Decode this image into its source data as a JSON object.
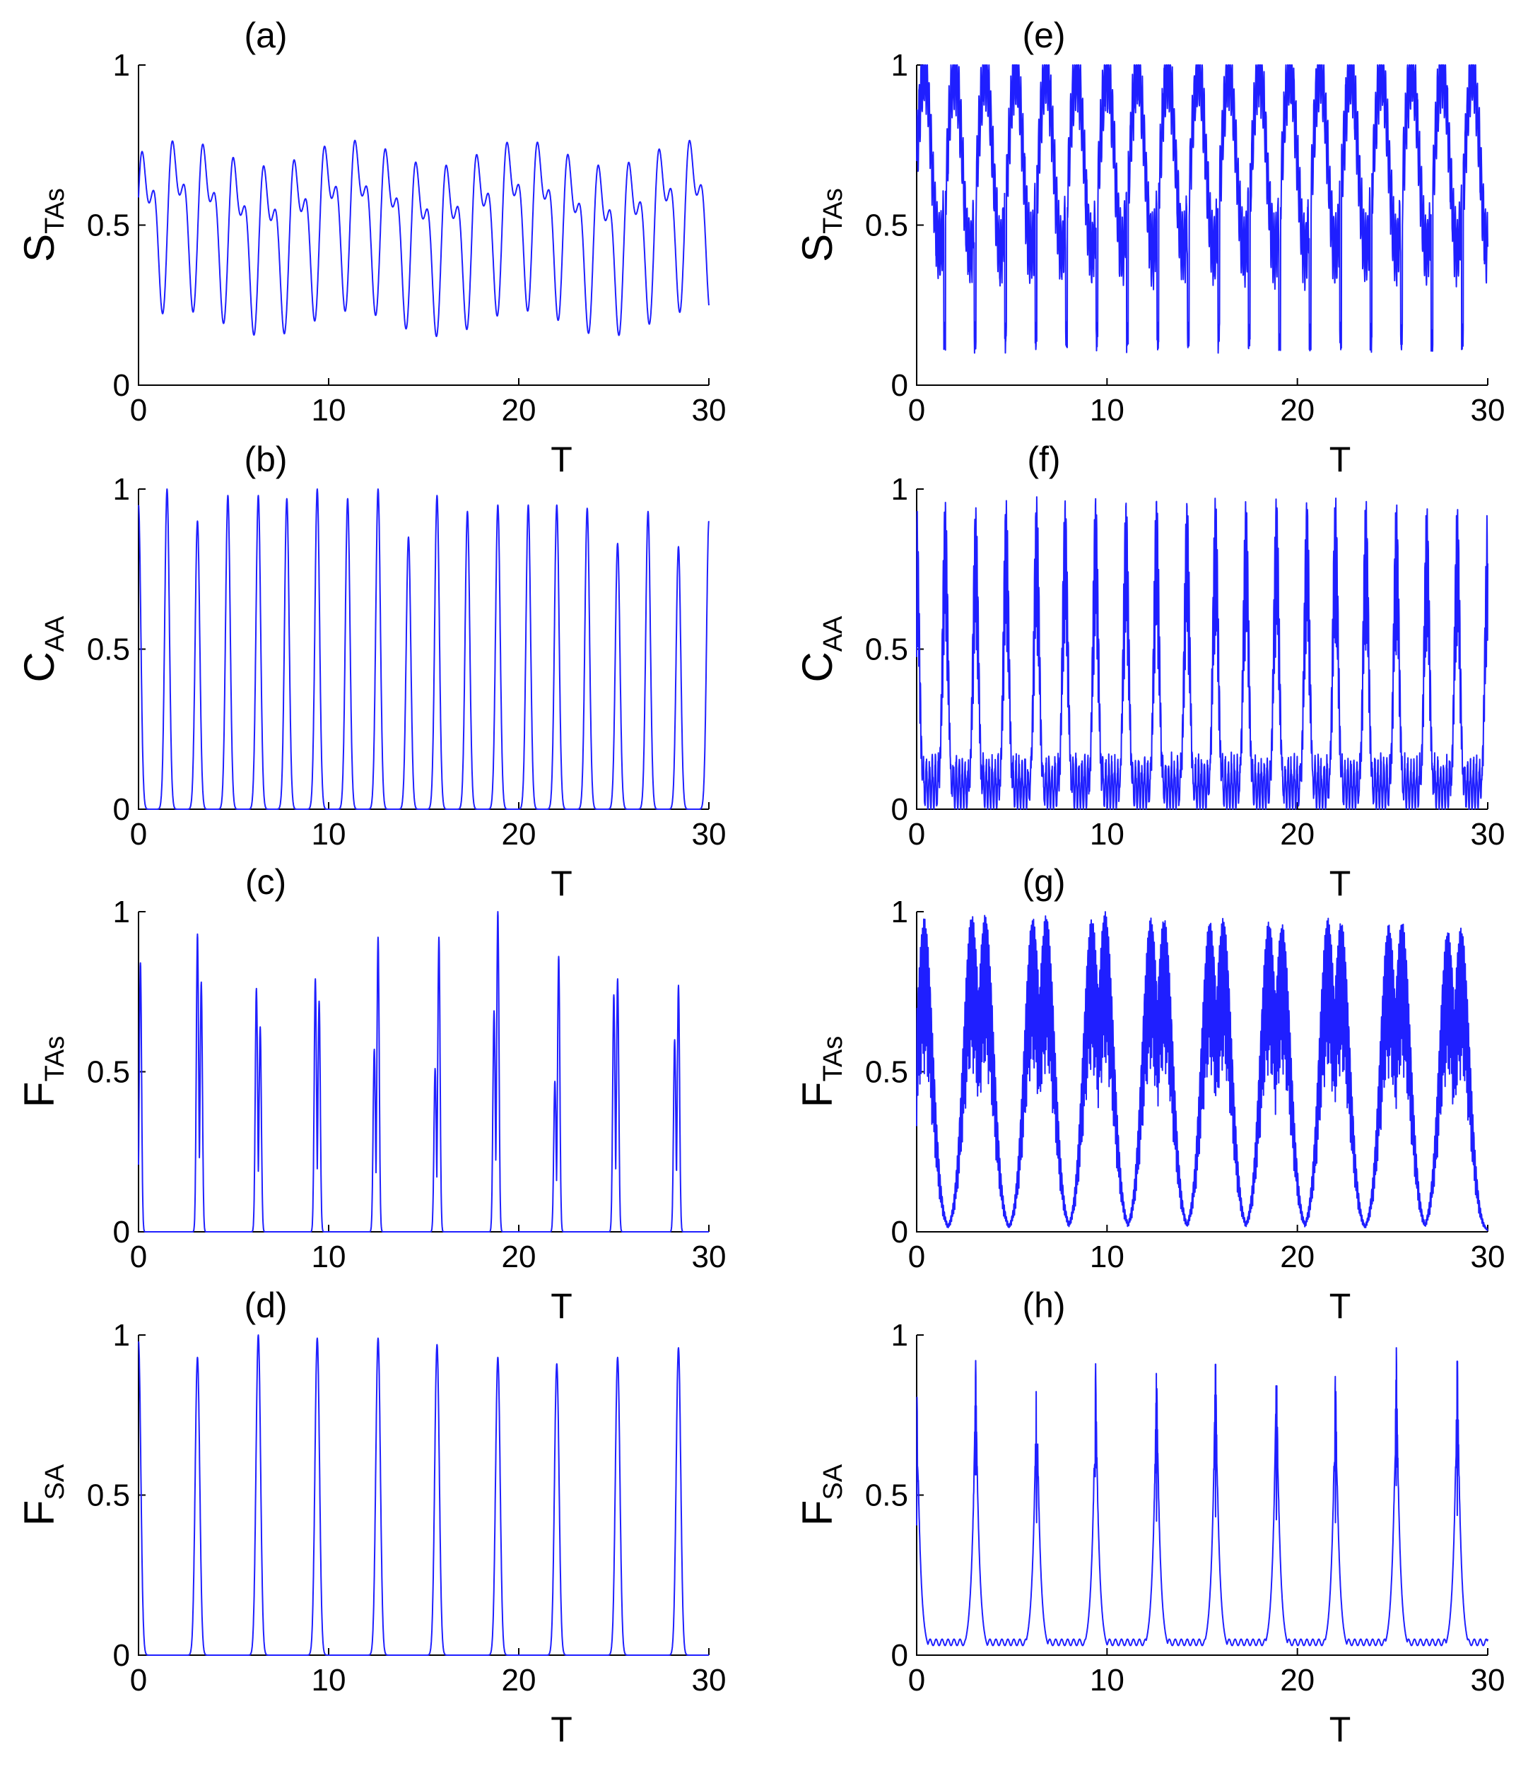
{
  "chart_data": [
    {
      "panel_label": "(a)",
      "type": "line",
      "ylabel_main": "S",
      "ylabel_sub": "TAs",
      "xlabel": "T",
      "xlim": [
        0,
        30
      ],
      "ylim": [
        0,
        1
      ],
      "xticks": [
        "0",
        "10",
        "20",
        "30"
      ],
      "yticks": [
        "0",
        "0.5",
        "1"
      ],
      "series": [
        {
          "color": "#1f1fff",
          "baseline": 0.5,
          "amp_big": 0.33,
          "amp_small": 0.24,
          "period": 1.6,
          "small_phase": 0.8,
          "noise": 0.0,
          "dense_amp": 0.0,
          "min_level": 0.15
        }
      ]
    },
    {
      "panel_label": "(b)",
      "type": "line",
      "ylabel_main": "C",
      "ylabel_sub": "AA",
      "xlabel": "T",
      "xlim": [
        0,
        30
      ],
      "ylim": [
        0,
        1
      ],
      "xticks": [
        "0",
        "10",
        "20",
        "30"
      ],
      "yticks": [
        "0",
        "0.5",
        "1"
      ],
      "series": [
        {
          "color": "#1f1fff",
          "peaks": [
            0,
            1.5,
            3.1,
            4.7,
            6.3,
            7.8,
            9.4,
            11.0,
            12.6,
            14.2,
            15.7,
            17.3,
            18.9,
            20.5,
            22.0,
            23.6,
            25.2,
            26.8,
            28.4,
            30.0
          ],
          "peak_heights": [
            0.95,
            1.0,
            0.9,
            0.98,
            0.98,
            0.97,
            1.0,
            0.97,
            1.0,
            0.85,
            0.98,
            0.93,
            0.95,
            0.95,
            0.95,
            0.94,
            0.83,
            0.93,
            0.82,
            0.9
          ],
          "width": 0.12,
          "floor": 0.0
        }
      ]
    },
    {
      "panel_label": "(c)",
      "type": "line",
      "ylabel_main": "F",
      "ylabel_sub": "TAs",
      "xlabel": "T",
      "xlim": [
        0,
        30
      ],
      "ylim": [
        0,
        1
      ],
      "xticks": [
        "0",
        "10",
        "20",
        "30"
      ],
      "yticks": [
        "0",
        "0.5",
        "1"
      ],
      "series": [
        {
          "color": "#1f1fff",
          "peaks": [
            0.1,
            3.1,
            3.3,
            6.2,
            6.4,
            9.3,
            9.5,
            12.4,
            12.6,
            15.6,
            15.8,
            18.7,
            18.9,
            21.9,
            22.1,
            25.0,
            25.2,
            28.2,
            28.4
          ],
          "peak_heights": [
            0.84,
            0.93,
            0.78,
            0.76,
            0.64,
            0.79,
            0.72,
            0.57,
            0.92,
            0.51,
            0.92,
            0.69,
            1.0,
            0.47,
            0.86,
            0.74,
            0.79,
            0.6,
            0.77
          ],
          "width": 0.06,
          "floor": 0.0
        }
      ]
    },
    {
      "panel_label": "(d)",
      "type": "line",
      "ylabel_main": "F",
      "ylabel_sub": "SA",
      "xlabel": "T",
      "xlim": [
        0,
        30
      ],
      "ylim": [
        0,
        1
      ],
      "xticks": [
        "0",
        "10",
        "20",
        "30"
      ],
      "yticks": [
        "0",
        "0.5",
        "1"
      ],
      "series": [
        {
          "color": "#1f1fff",
          "peaks": [
            0.0,
            3.1,
            6.3,
            9.4,
            12.6,
            15.7,
            18.9,
            22.0,
            25.2,
            28.4
          ],
          "peak_heights": [
            0.98,
            0.93,
            1.0,
            0.99,
            0.99,
            0.97,
            0.93,
            0.91,
            0.93,
            0.96
          ],
          "width": 0.12,
          "floor": 0.0
        }
      ]
    },
    {
      "panel_label": "(e)",
      "type": "line",
      "ylabel_main": "S",
      "ylabel_sub": "TAs",
      "xlabel": "T",
      "xlim": [
        0,
        30
      ],
      "ylim": [
        0,
        1
      ],
      "xticks": [
        "0",
        "10",
        "20",
        "30"
      ],
      "yticks": [
        "0",
        "0.5",
        "1"
      ],
      "series": [
        {
          "color": "#1f1fff",
          "baseline": 0.7,
          "amp_big": 0.28,
          "amp_small": 0.0,
          "period": 1.6,
          "small_phase": 0.0,
          "noise": 0.0,
          "dense_amp": 0.13,
          "min_level": 0.1
        }
      ]
    },
    {
      "panel_label": "(f)",
      "type": "line",
      "ylabel_main": "C",
      "ylabel_sub": "AA",
      "xlabel": "T",
      "xlim": [
        0,
        30
      ],
      "ylim": [
        0,
        1
      ],
      "xticks": [
        "0",
        "10",
        "20",
        "30"
      ],
      "yticks": [
        "0",
        "0.5",
        "1"
      ],
      "series": [
        {
          "color": "#1f1fff",
          "peaks": [
            0,
            1.5,
            3.1,
            4.7,
            6.3,
            7.8,
            9.4,
            11.0,
            12.6,
            14.2,
            15.7,
            17.3,
            18.9,
            20.5,
            22.0,
            23.6,
            25.2,
            26.8,
            28.4,
            30.0
          ],
          "peak_heights": [
            0.95,
            0.97,
            0.95,
            0.97,
            0.98,
            0.97,
            0.98,
            0.97,
            0.98,
            0.97,
            0.98,
            0.97,
            0.98,
            0.97,
            0.98,
            0.97,
            0.96,
            0.95,
            0.95,
            0.95
          ],
          "width": 0.15,
          "floor": 0.18,
          "dense": true
        }
      ]
    },
    {
      "panel_label": "(g)",
      "type": "line",
      "ylabel_main": "F",
      "ylabel_sub": "TAs",
      "xlabel": "T",
      "xlim": [
        0,
        30
      ],
      "ylim": [
        0,
        1
      ],
      "xticks": [
        "0",
        "10",
        "20",
        "30"
      ],
      "yticks": [
        "0",
        "0.5",
        "1"
      ],
      "series": [
        {
          "color": "#1f1fff",
          "peaks": [
            0.4,
            2.9,
            3.6,
            6.1,
            6.8,
            9.2,
            9.9,
            12.3,
            13.0,
            15.4,
            16.1,
            18.5,
            19.2,
            21.6,
            22.3,
            24.8,
            25.5,
            27.9,
            28.6
          ],
          "peak_heights": [
            0.98,
            0.99,
            0.99,
            0.98,
            0.99,
            0.98,
            1.0,
            0.98,
            0.98,
            0.97,
            0.98,
            0.97,
            0.96,
            0.98,
            0.97,
            0.96,
            0.97,
            0.94,
            0.95
          ],
          "width": 0.45,
          "floor": 0.0,
          "dense": true
        }
      ]
    },
    {
      "panel_label": "(h)",
      "type": "line",
      "ylabel_main": "F",
      "ylabel_sub": "SA",
      "xlabel": "T",
      "xlim": [
        0,
        30
      ],
      "ylim": [
        0,
        1
      ],
      "xticks": [
        "0",
        "10",
        "20",
        "30"
      ],
      "yticks": [
        "0",
        "0.5",
        "1"
      ],
      "series": [
        {
          "color": "#1f1fff",
          "peaks": [
            0.0,
            3.1,
            6.3,
            9.4,
            12.6,
            15.7,
            18.9,
            22.0,
            25.2,
            28.4,
            30.0
          ],
          "peak_heights": [
            0.9,
            0.92,
            0.92,
            0.91,
            0.93,
            0.96,
            0.94,
            0.92,
            0.96,
            0.97,
            0.05
          ],
          "width": 0.18,
          "floor": 0.04,
          "cusp": true
        }
      ]
    }
  ]
}
